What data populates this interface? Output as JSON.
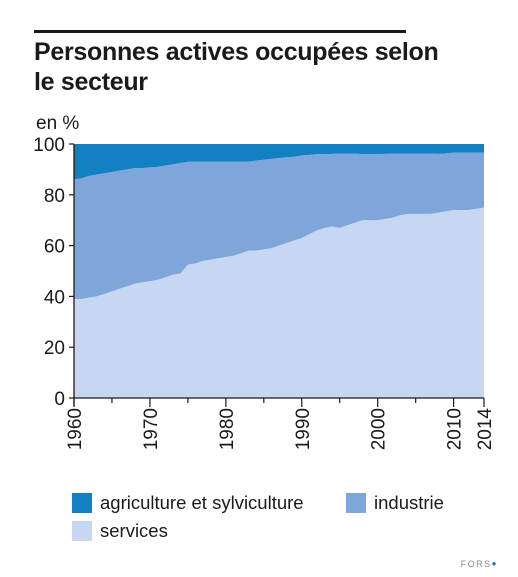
{
  "title_line1": "Personnes actives occupées selon",
  "title_line2": "le secteur",
  "unit_label": "en %",
  "logo_text": "FORS",
  "colors": {
    "agriculture": "#1380c3",
    "industrie": "#7fa6db",
    "services": "#c7d7f1",
    "axis": "#1a1a1a"
  },
  "chart_data": {
    "type": "area",
    "stacked": true,
    "title": "Personnes actives occupées selon le secteur",
    "ylabel": "en %",
    "xlabel": "",
    "ylim": [
      0,
      100
    ],
    "xlim": [
      1960,
      2014
    ],
    "yticks": [
      0,
      20,
      40,
      60,
      80,
      100
    ],
    "xticks": [
      1960,
      1970,
      1980,
      1990,
      2000,
      2010,
      2014
    ],
    "legend_position": "bottom",
    "x": [
      1960,
      1961,
      1962,
      1963,
      1964,
      1965,
      1966,
      1967,
      1968,
      1969,
      1970,
      1971,
      1972,
      1973,
      1974,
      1975,
      1976,
      1977,
      1978,
      1979,
      1980,
      1981,
      1982,
      1983,
      1984,
      1985,
      1986,
      1987,
      1988,
      1989,
      1990,
      1991,
      1992,
      1993,
      1994,
      1995,
      1996,
      1997,
      1998,
      1999,
      2000,
      2001,
      2002,
      2003,
      2004,
      2005,
      2006,
      2007,
      2008,
      2009,
      2010,
      2011,
      2012,
      2013,
      2014
    ],
    "series": [
      {
        "name": "services",
        "values": [
          39,
          39,
          39.5,
          40,
          41,
          42,
          43,
          44,
          45,
          45.5,
          46,
          46.5,
          47.5,
          48.5,
          49,
          52.5,
          53,
          54,
          54.5,
          55,
          55.5,
          56,
          57,
          58,
          58,
          58.5,
          59,
          60,
          61,
          62,
          63,
          64.5,
          66,
          67,
          67.5,
          67,
          68,
          69,
          70,
          70,
          70,
          70.5,
          71,
          72,
          72.5,
          72.5,
          72.5,
          72.5,
          73,
          73.5,
          74,
          74,
          74,
          74.5,
          75
        ]
      },
      {
        "name": "industrie",
        "values": [
          47,
          47.5,
          48,
          48,
          47.5,
          47,
          46.5,
          46,
          45.5,
          45,
          44.8,
          44.5,
          44,
          43.5,
          43.5,
          40.5,
          40,
          39,
          38.5,
          38,
          37.5,
          37,
          36,
          35,
          35.5,
          35.3,
          35.2,
          34.5,
          33.8,
          33,
          32.5,
          31.2,
          30,
          29,
          28.6,
          29.2,
          28.2,
          27.2,
          26,
          26,
          26,
          25.6,
          25.2,
          24.2,
          23.7,
          23.7,
          23.7,
          23.7,
          23.1,
          22.8,
          22.6,
          22.6,
          22.6,
          22.1,
          21.6
        ]
      },
      {
        "name": "agriculture et sylviculture",
        "values": [
          14,
          13.5,
          12.5,
          12,
          11.5,
          11,
          10.5,
          10,
          9.5,
          9.5,
          9.2,
          9,
          8.5,
          8,
          7.5,
          7,
          7,
          7,
          7,
          7,
          7,
          7,
          7,
          7,
          6.5,
          6.2,
          5.8,
          5.5,
          5.2,
          5,
          4.5,
          4.3,
          4,
          4,
          3.9,
          3.8,
          3.8,
          3.8,
          4,
          4,
          4,
          3.9,
          3.8,
          3.8,
          3.8,
          3.8,
          3.8,
          3.8,
          3.9,
          3.7,
          3.4,
          3.4,
          3.4,
          3.4,
          3.4
        ]
      }
    ]
  }
}
